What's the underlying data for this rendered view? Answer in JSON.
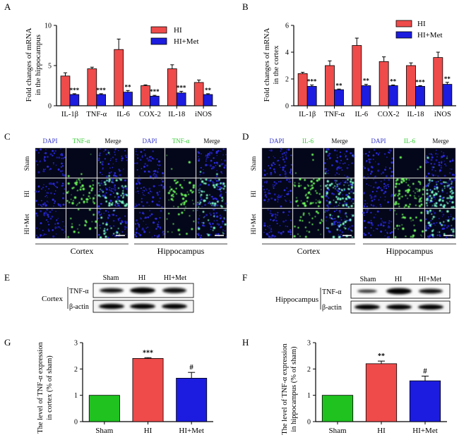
{
  "colors": {
    "hi": "#ef4b4b",
    "met": "#1c1ce0",
    "sham": "#1fc21f",
    "dapi": "#3333cc",
    "green": "#2ecc2e",
    "axis": "#000000"
  },
  "panels": {
    "A": "A",
    "B": "B",
    "C": "C",
    "D": "D",
    "E": "E",
    "F": "F",
    "G": "G",
    "H": "H"
  },
  "chart_data": [
    {
      "id": "A",
      "type": "bar",
      "ylabel": "Fold changes of mRNA in the hippocampus",
      "ylabel_lines": [
        "Fold changes of mRNA",
        "in the hippocampus"
      ],
      "ylim": [
        0,
        10
      ],
      "yticks": [
        "0",
        "5",
        "10"
      ],
      "ytick_values": [
        0,
        5,
        10
      ],
      "categories": [
        "IL-1β",
        "TNF-α",
        "IL-6",
        "COX-2",
        "IL-18",
        "iNOS"
      ],
      "legend": [
        "HI",
        "HI+Met"
      ],
      "series": [
        {
          "name": "HI",
          "values": [
            3.7,
            4.6,
            7.0,
            2.5,
            4.6,
            2.9
          ],
          "errors": [
            0.4,
            0.2,
            1.3,
            0.1,
            0.5,
            0.3
          ],
          "sig": [
            "",
            "",
            "",
            "",
            "",
            ""
          ]
        },
        {
          "name": "HI+Met",
          "values": [
            1.4,
            1.4,
            1.7,
            1.2,
            1.6,
            1.4
          ],
          "errors": [
            0.1,
            0.1,
            0.2,
            0.1,
            0.2,
            0.1
          ],
          "sig": [
            "***",
            "***",
            "**",
            "***",
            "***",
            "**"
          ]
        }
      ]
    },
    {
      "id": "B",
      "type": "bar",
      "ylabel": "Fold changes of mRNA in the cortex",
      "ylabel_lines": [
        "Fold changes of mRNA",
        "in the cortex"
      ],
      "ylim": [
        0,
        6
      ],
      "yticks": [
        "0",
        "2",
        "4",
        "6"
      ],
      "ytick_values": [
        0,
        2,
        4,
        6
      ],
      "categories": [
        "IL-1β",
        "TNF-α",
        "IL-6",
        "COX-2",
        "IL-18",
        "iNOS"
      ],
      "legend": [
        "HI",
        "HI+Met"
      ],
      "series": [
        {
          "name": "HI",
          "values": [
            2.4,
            3.0,
            4.5,
            3.3,
            3.0,
            3.6
          ],
          "errors": [
            0.1,
            0.35,
            0.55,
            0.35,
            0.2,
            0.4
          ],
          "sig": [
            "",
            "",
            "",
            "",
            "",
            ""
          ]
        },
        {
          "name": "HI+Met",
          "values": [
            1.45,
            1.2,
            1.5,
            1.5,
            1.45,
            1.6
          ],
          "errors": [
            0.1,
            0.05,
            0.1,
            0.05,
            0.05,
            0.15
          ],
          "sig": [
            "***",
            "**",
            "**",
            "**",
            "***",
            "**"
          ]
        }
      ]
    },
    {
      "id": "G",
      "type": "bar",
      "ylabel": "The level of TNF-α expression in cortex (% of sham)",
      "ylabel_lines": [
        "The level of TNF-α expression",
        "in cortex (% of sham)"
      ],
      "ylim": [
        0,
        3
      ],
      "yticks": [
        "0",
        "1",
        "2",
        "3"
      ],
      "ytick_values": [
        0,
        1,
        2,
        3
      ],
      "categories": [
        "Sham",
        "HI",
        "HI+Met"
      ],
      "values": [
        1.0,
        2.4,
        1.65
      ],
      "errors": [
        0,
        0.03,
        0.22
      ],
      "sig": [
        "",
        "***",
        "#"
      ]
    },
    {
      "id": "H",
      "type": "bar",
      "ylabel": "The level of TNF-α expression in hippocampus (% of sham)",
      "ylabel_lines": [
        "The level of TNF-α  expression",
        "in hippocampus (% of sham)"
      ],
      "ylim": [
        0,
        3
      ],
      "yticks": [
        "0",
        "1",
        "2",
        "3"
      ],
      "ytick_values": [
        0,
        1,
        2,
        3
      ],
      "categories": [
        "Sham",
        "HI",
        "HI+Met"
      ],
      "values": [
        1.0,
        2.2,
        1.55
      ],
      "errors": [
        0,
        0.1,
        0.18
      ],
      "sig": [
        "",
        "**",
        "#"
      ]
    }
  ],
  "microscopy": {
    "C": {
      "col_labels": [
        "DAPI",
        "TNF-α",
        "Merge"
      ],
      "row_labels": [
        "Sham",
        "HI",
        "HI+Met"
      ],
      "regions": [
        "Cortex",
        "Hippocampus"
      ]
    },
    "D": {
      "col_labels": [
        "DAPI",
        "IL-6",
        "Merge"
      ],
      "row_labels": [
        "Sham",
        "HI",
        "HI+Met"
      ],
      "regions": [
        "Cortex",
        "Hippocampus"
      ]
    }
  },
  "blots": {
    "E": {
      "tissue": "Cortex",
      "groups": [
        "Sham",
        "HI",
        "HI+Met"
      ],
      "bands": [
        "TNF-α",
        "β-actin"
      ]
    },
    "F": {
      "tissue": "Hippocampus",
      "groups": [
        "Sham",
        "HI",
        "HI+Met"
      ],
      "bands": [
        "TNF-α",
        "β-actin"
      ]
    }
  }
}
